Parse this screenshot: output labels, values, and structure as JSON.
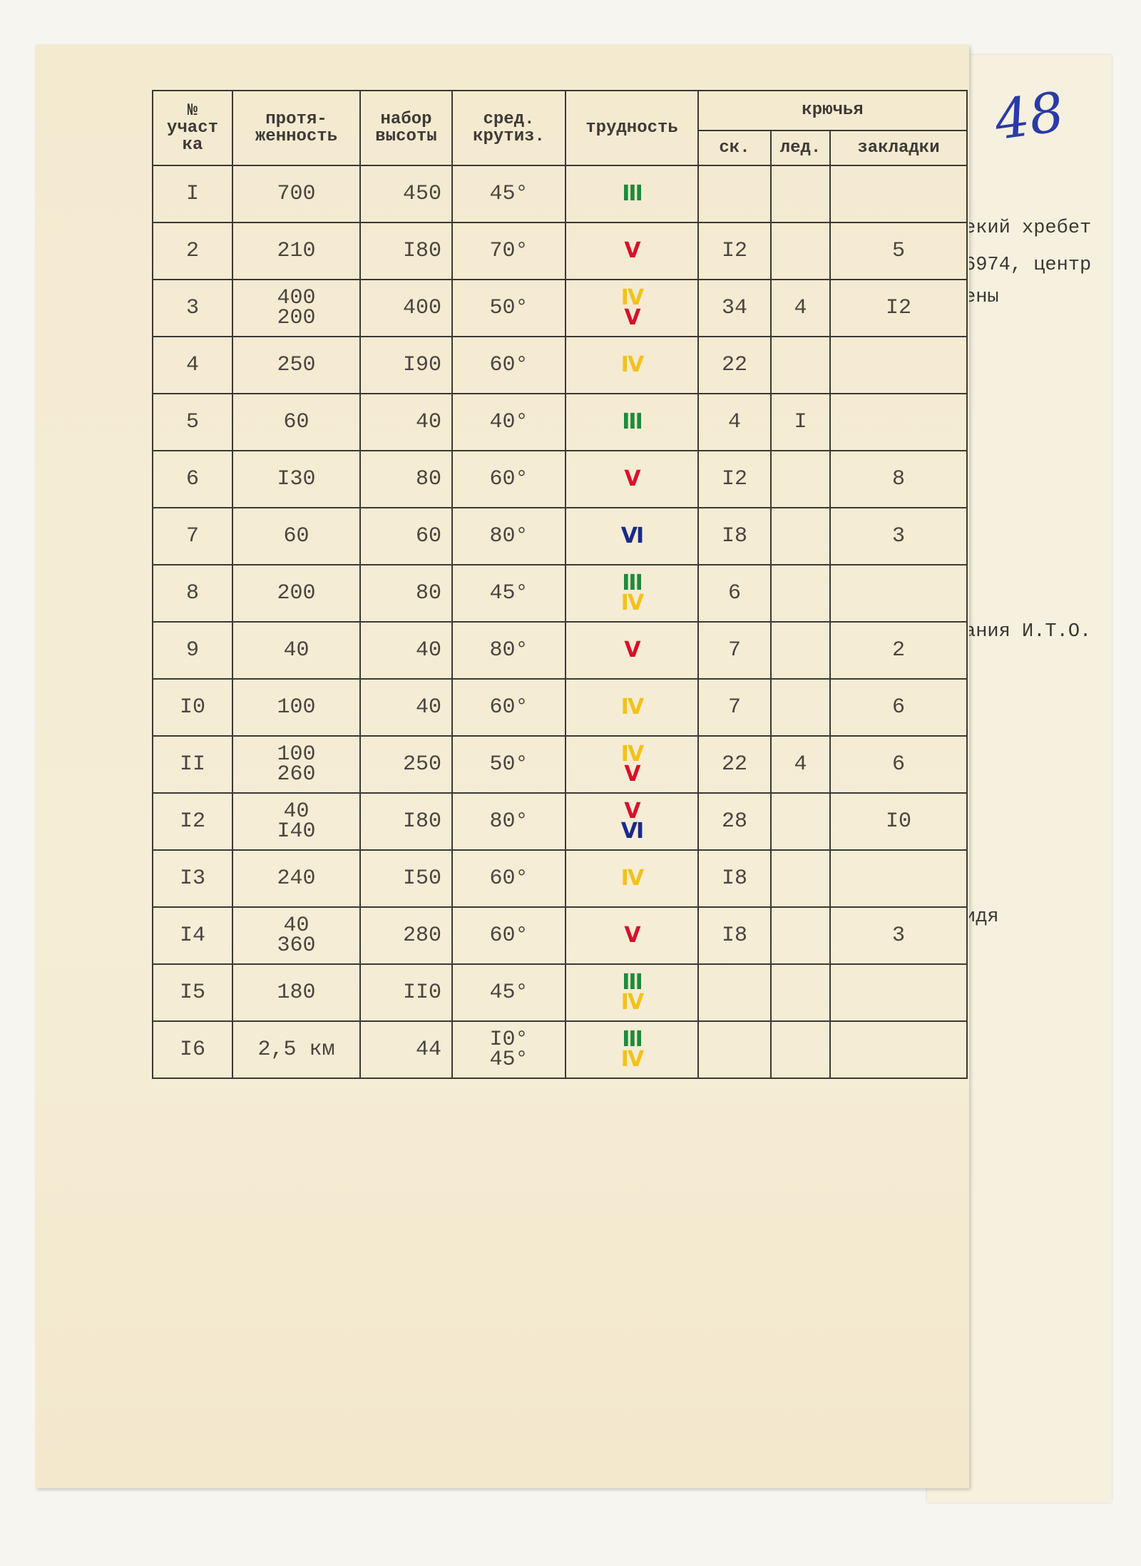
{
  "handwritten_mark": "48",
  "back_page": {
    "lines": [
      "екий хребет",
      "6974, центр",
      "ены",
      "ания И.Т.О.",
      "идя"
    ]
  },
  "table": {
    "header": {
      "columns": [
        "№\nучаст\nка",
        "протя-\nженность",
        "набор\nвысоты",
        "сред.\nкрутиз.",
        "трудность"
      ],
      "group": "крючья",
      "sub": [
        "ск.",
        "лед.",
        "закладки"
      ]
    },
    "grade_colors": {
      "III": "#1f8a3a",
      "IV": "#f2c21b",
      "V": "#d8102a",
      "VI": "#1a2a8c"
    },
    "rows": [
      [
        "I",
        "700",
        "450",
        "45°",
        [
          "III"
        ],
        null,
        null,
        null
      ],
      [
        "2",
        "210",
        "I80",
        "70°",
        [
          "V"
        ],
        "I2",
        null,
        "5"
      ],
      [
        "3",
        [
          "400",
          "200"
        ],
        "400",
        "50°",
        [
          "IV",
          "V"
        ],
        "34",
        "4",
        "I2"
      ],
      [
        "4",
        "250",
        "I90",
        "60°",
        [
          "IV"
        ],
        "22",
        null,
        null
      ],
      [
        "5",
        "60",
        "40",
        "40°",
        [
          "III"
        ],
        "4",
        "I",
        null
      ],
      [
        "6",
        "I30",
        "80",
        "60°",
        [
          "V"
        ],
        "I2",
        null,
        "8"
      ],
      [
        "7",
        "60",
        "60",
        "80°",
        [
          "VI"
        ],
        "I8",
        null,
        "3"
      ],
      [
        "8",
        "200",
        "80",
        "45°",
        [
          "III",
          "IV"
        ],
        "6",
        null,
        null
      ],
      [
        "9",
        "40",
        "40",
        "80°",
        [
          "V"
        ],
        "7",
        null,
        "2"
      ],
      [
        "I0",
        "100",
        "40",
        "60°",
        [
          "IV"
        ],
        "7",
        null,
        "6"
      ],
      [
        "II",
        [
          "100",
          "260"
        ],
        "250",
        "50°",
        [
          "IV",
          "V"
        ],
        "22",
        "4",
        "6"
      ],
      [
        "I2",
        [
          "40",
          "I40"
        ],
        "I80",
        "80°",
        [
          "V",
          "VI"
        ],
        "28",
        null,
        "I0"
      ],
      [
        "I3",
        "240",
        "I50",
        "60°",
        [
          "IV"
        ],
        "I8",
        null,
        null
      ],
      [
        "I4",
        [
          "40",
          "360"
        ],
        "280",
        "60°",
        [
          "V"
        ],
        "I8",
        null,
        "3"
      ],
      [
        "I5",
        "180",
        "II0",
        "45°",
        [
          "III",
          "IV"
        ],
        null,
        null,
        null
      ],
      [
        "I6",
        "2,5 км",
        "44",
        [
          "I0°",
          "45°"
        ],
        [
          "III",
          "IV"
        ],
        null,
        null,
        null
      ]
    ]
  }
}
